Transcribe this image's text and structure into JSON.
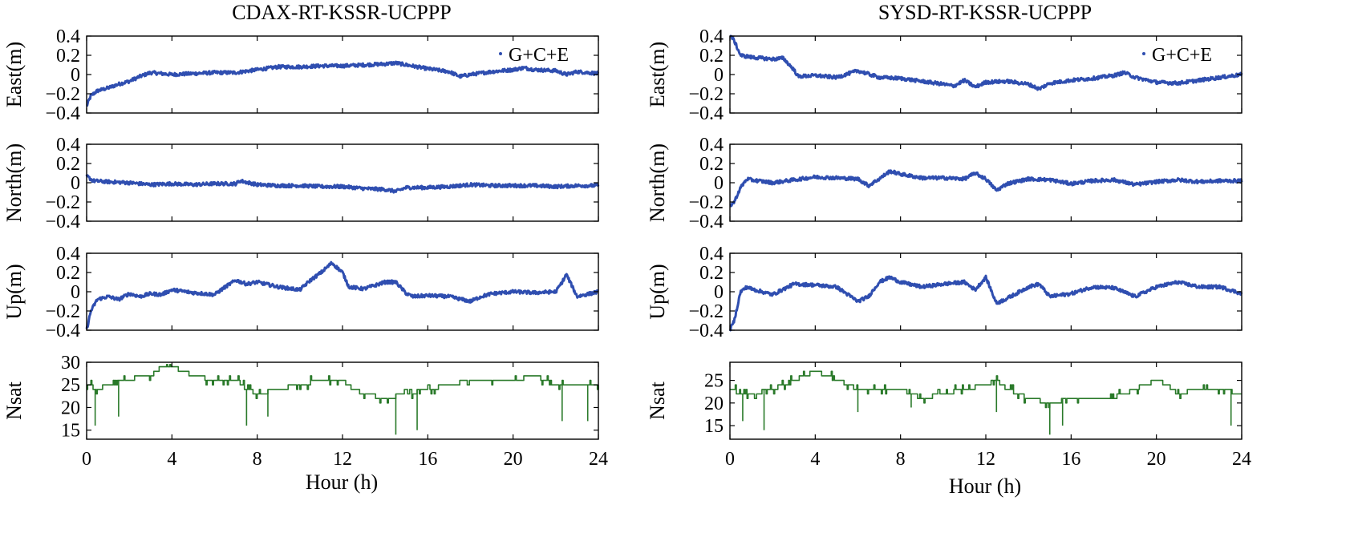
{
  "colors": {
    "position_series": "#2f4eb0",
    "nsat_series": "#2a7a2a",
    "axes": "#000000"
  },
  "columns": [
    {
      "title": "CDAX-RT-KSSR-UCPPP",
      "xlabel": "Hour (h)",
      "legend": "G+C+E"
    },
    {
      "title": "SYSD-RT-KSSR-UCPPP",
      "xlabel": "Hour (h)",
      "legend": "G+C+E"
    }
  ],
  "chart_data": [
    {
      "type": "line",
      "station": "CDAX",
      "panel": "East",
      "ylabel": "East(m)",
      "xlim": [
        0,
        24
      ],
      "ylim": [
        -0.4,
        0.4
      ],
      "xticks": [
        "0",
        "4",
        "8",
        "12",
        "16",
        "20",
        "24"
      ],
      "yticks": [
        "0.4",
        "0.2",
        "0",
        "−0.2",
        "−0.4"
      ],
      "grid": false,
      "legend_position": "top-right",
      "series": [
        {
          "name": "G+C+E",
          "color": "#2f4eb0",
          "x": [
            0,
            0.2,
            0.5,
            1,
            1.5,
            2,
            2.5,
            3,
            3.5,
            4,
            5,
            6,
            7,
            8,
            9,
            10,
            11,
            12,
            13,
            14,
            14.5,
            15,
            16,
            17,
            17.5,
            18,
            19,
            20,
            20.5,
            21,
            22,
            22.5,
            23,
            24
          ],
          "y": [
            -0.33,
            -0.22,
            -0.17,
            -0.14,
            -0.1,
            -0.07,
            -0.02,
            0.02,
            0.01,
            0.0,
            0.01,
            0.02,
            0.02,
            0.05,
            0.08,
            0.08,
            0.09,
            0.09,
            0.1,
            0.11,
            0.12,
            0.1,
            0.06,
            0.03,
            -0.02,
            0.0,
            0.03,
            0.05,
            0.07,
            0.05,
            0.04,
            0.0,
            0.03,
            0.01
          ]
        }
      ]
    },
    {
      "type": "line",
      "station": "CDAX",
      "panel": "North",
      "ylabel": "North(m)",
      "xlim": [
        0,
        24
      ],
      "ylim": [
        -0.4,
        0.4
      ],
      "xticks": [
        "0",
        "4",
        "8",
        "12",
        "16",
        "20",
        "24"
      ],
      "yticks": [
        "0.4",
        "0.2",
        "0",
        "−0.2",
        "−0.4"
      ],
      "grid": false,
      "series": [
        {
          "name": "G+C+E",
          "color": "#2f4eb0",
          "x": [
            0,
            0.3,
            1,
            2,
            3,
            4,
            5,
            6,
            7,
            7.2,
            8,
            9,
            10,
            11,
            12,
            13,
            14,
            14.5,
            15,
            16,
            17,
            18,
            19,
            20,
            21,
            22,
            23,
            24
          ],
          "y": [
            0.07,
            0.02,
            0.01,
            0.0,
            -0.02,
            -0.01,
            -0.02,
            -0.01,
            -0.01,
            0.02,
            -0.02,
            -0.03,
            -0.03,
            -0.04,
            -0.04,
            -0.06,
            -0.07,
            -0.09,
            -0.05,
            -0.05,
            -0.04,
            -0.02,
            -0.03,
            -0.03,
            -0.03,
            -0.04,
            -0.03,
            -0.03
          ]
        }
      ]
    },
    {
      "type": "line",
      "station": "CDAX",
      "panel": "Up",
      "ylabel": "Up(m)",
      "xlim": [
        0,
        24
      ],
      "ylim": [
        -0.4,
        0.4
      ],
      "xticks": [
        "0",
        "4",
        "8",
        "12",
        "16",
        "20",
        "24"
      ],
      "yticks": [
        "0.4",
        "0.2",
        "0",
        "−0.2",
        "−0.4"
      ],
      "grid": false,
      "series": [
        {
          "name": "G+C+E",
          "color": "#2f4eb0",
          "x": [
            0,
            0.2,
            0.5,
            1,
            1.5,
            2,
            2.5,
            3,
            3.5,
            4,
            5,
            6,
            6.5,
            7,
            7.5,
            8,
            9,
            10,
            10.5,
            11,
            11.5,
            12,
            12.3,
            13,
            14,
            14.5,
            15,
            15.3,
            16,
            17,
            18,
            18.5,
            19,
            20,
            21,
            22,
            22.3,
            22.5,
            23,
            24
          ],
          "y": [
            -0.4,
            -0.2,
            -0.08,
            -0.05,
            -0.08,
            -0.02,
            -0.05,
            -0.02,
            -0.03,
            0.02,
            -0.01,
            -0.03,
            0.05,
            0.12,
            0.08,
            0.1,
            0.05,
            0.02,
            0.12,
            0.2,
            0.3,
            0.2,
            0.05,
            0.03,
            0.1,
            0.1,
            -0.02,
            -0.05,
            -0.04,
            -0.05,
            -0.1,
            -0.05,
            -0.02,
            0.0,
            -0.01,
            0.0,
            0.1,
            0.18,
            -0.05,
            0.0
          ]
        }
      ]
    },
    {
      "type": "line",
      "station": "CDAX",
      "panel": "Nsat",
      "ylabel": "Nsat",
      "xlim": [
        0,
        24
      ],
      "ylim": [
        13,
        30
      ],
      "xticks": [
        "0",
        "4",
        "8",
        "12",
        "16",
        "20",
        "24"
      ],
      "yticks": [
        "30",
        "25",
        "20",
        "15"
      ],
      "xlabel": "Hour (h)",
      "grid": false,
      "series": [
        {
          "name": "Nsat",
          "color": "#2a7a2a",
          "x": [
            0,
            0.5,
            1,
            1.5,
            2,
            2.5,
            3,
            3.5,
            4,
            4.5,
            5,
            6,
            7,
            7.5,
            8,
            9,
            10,
            11,
            12,
            12.5,
            13,
            14,
            15,
            16,
            17,
            18,
            19,
            20,
            21,
            22,
            23,
            24
          ],
          "y": [
            25,
            24,
            25,
            26,
            26,
            27,
            27,
            29,
            29,
            28,
            27,
            26,
            26,
            24,
            23,
            24,
            25,
            26,
            26,
            24,
            23,
            22,
            23,
            24,
            25,
            26,
            26,
            26,
            27,
            25,
            25,
            25
          ]
        }
      ]
    },
    {
      "type": "line",
      "station": "SYSD",
      "panel": "East",
      "ylabel": "East(m)",
      "xlim": [
        0,
        24
      ],
      "ylim": [
        -0.4,
        0.4
      ],
      "xticks": [
        "0",
        "4",
        "8",
        "12",
        "16",
        "20",
        "24"
      ],
      "yticks": [
        "0.4",
        "0.2",
        "0",
        "−0.2",
        "−0.4"
      ],
      "grid": false,
      "legend_position": "top-right",
      "series": [
        {
          "name": "G+C+E",
          "color": "#2f4eb0",
          "x": [
            0,
            0.2,
            0.5,
            1,
            1.5,
            2,
            2.5,
            3,
            3.2,
            4,
            5,
            6,
            7,
            8,
            9,
            10,
            10.5,
            11,
            11.5,
            12,
            13,
            14,
            14.5,
            15,
            16,
            17,
            18,
            18.5,
            19,
            20,
            21,
            22,
            23,
            24
          ],
          "y": [
            0.42,
            0.35,
            0.2,
            0.18,
            0.17,
            0.16,
            0.17,
            0.05,
            -0.02,
            -0.01,
            -0.03,
            0.04,
            -0.03,
            -0.04,
            -0.07,
            -0.1,
            -0.12,
            -0.06,
            -0.13,
            -0.08,
            -0.07,
            -0.1,
            -0.15,
            -0.09,
            -0.06,
            -0.04,
            -0.01,
            0.02,
            -0.03,
            -0.08,
            -0.09,
            -0.06,
            -0.03,
            0.0
          ]
        }
      ]
    },
    {
      "type": "line",
      "station": "SYSD",
      "panel": "North",
      "ylabel": "North(m)",
      "xlim": [
        0,
        24
      ],
      "ylim": [
        -0.4,
        0.4
      ],
      "xticks": [
        "0",
        "4",
        "8",
        "12",
        "16",
        "20",
        "24"
      ],
      "yticks": [
        "0.4",
        "0.2",
        "0",
        "−0.2",
        "−0.4"
      ],
      "grid": false,
      "series": [
        {
          "name": "G+C+E",
          "color": "#2f4eb0",
          "x": [
            0,
            0.2,
            0.5,
            0.8,
            1,
            2,
            3,
            4,
            5,
            6,
            6.5,
            7,
            7.5,
            8,
            9,
            10,
            11,
            11.5,
            12,
            12.5,
            13,
            14,
            15,
            16,
            17,
            18,
            19,
            20,
            21,
            22,
            23,
            24
          ],
          "y": [
            -0.24,
            -0.2,
            -0.05,
            0.04,
            0.03,
            0.0,
            0.03,
            0.06,
            0.05,
            0.04,
            -0.03,
            0.04,
            0.12,
            0.09,
            0.05,
            0.05,
            0.04,
            0.1,
            0.04,
            -0.08,
            -0.01,
            0.04,
            0.03,
            -0.01,
            0.02,
            0.03,
            -0.02,
            0.01,
            0.03,
            0.01,
            0.02,
            0.02
          ]
        }
      ]
    },
    {
      "type": "line",
      "station": "SYSD",
      "panel": "Up",
      "ylabel": "Up(m)",
      "xlim": [
        0,
        24
      ],
      "ylim": [
        -0.4,
        0.4
      ],
      "xticks": [
        "0",
        "4",
        "8",
        "12",
        "16",
        "20",
        "24"
      ],
      "yticks": [
        "0.4",
        "0.2",
        "0",
        "−0.2",
        "−0.4"
      ],
      "grid": false,
      "series": [
        {
          "name": "G+C+E",
          "color": "#2f4eb0",
          "x": [
            0,
            0.2,
            0.5,
            0.8,
            1,
            2,
            3,
            4,
            5,
            6,
            6.5,
            7,
            7.5,
            8,
            9,
            10,
            11,
            11.5,
            12,
            12.5,
            13,
            14,
            14.5,
            15,
            16,
            17,
            18,
            19,
            20,
            21,
            22,
            23,
            24
          ],
          "y": [
            -0.4,
            -0.3,
            0.0,
            0.05,
            0.03,
            -0.03,
            0.08,
            0.07,
            0.05,
            -0.1,
            -0.05,
            0.1,
            0.15,
            0.1,
            0.05,
            0.08,
            0.1,
            0.02,
            0.15,
            -0.12,
            -0.07,
            0.05,
            0.08,
            -0.05,
            -0.02,
            0.05,
            0.04,
            -0.05,
            0.05,
            0.1,
            0.05,
            0.05,
            -0.02
          ]
        }
      ]
    },
    {
      "type": "line",
      "station": "SYSD",
      "panel": "Nsat",
      "ylabel": "Nsat",
      "xlim": [
        0,
        24
      ],
      "ylim": [
        12,
        29
      ],
      "xticks": [
        "0",
        "4",
        "8",
        "12",
        "16",
        "20",
        "24"
      ],
      "yticks": [
        "25",
        "20",
        "15"
      ],
      "xlabel": "Hour (h)",
      "grid": false,
      "series": [
        {
          "name": "Nsat",
          "color": "#2a7a2a",
          "x": [
            0,
            0.5,
            1,
            2,
            3,
            3.5,
            4,
            4.5,
            5,
            6,
            7,
            8,
            9,
            10,
            11,
            12,
            12.5,
            13,
            14,
            15,
            16,
            17,
            18,
            19,
            20,
            20.5,
            21,
            22,
            23,
            24
          ],
          "y": [
            23,
            22,
            22,
            23,
            25,
            26,
            27,
            26,
            25,
            23,
            23,
            23,
            21,
            22,
            23,
            24,
            25,
            23,
            21,
            20,
            21,
            21,
            21,
            23,
            25,
            24,
            22,
            23,
            23,
            22
          ]
        }
      ]
    }
  ],
  "spikes": [
    {
      "panel": 3,
      "x": [
        0.4,
        1.5,
        7.5,
        8.5,
        14.5,
        15.5,
        22.3,
        23.5
      ],
      "low": [
        16,
        18,
        16,
        18,
        14,
        15,
        17,
        17
      ]
    },
    {
      "panel": 7,
      "x": [
        0.6,
        1.6,
        6,
        8.5,
        12.5,
        15,
        15.6,
        23.5
      ],
      "low": [
        16,
        14,
        18,
        19,
        18,
        13,
        15,
        15
      ]
    }
  ]
}
